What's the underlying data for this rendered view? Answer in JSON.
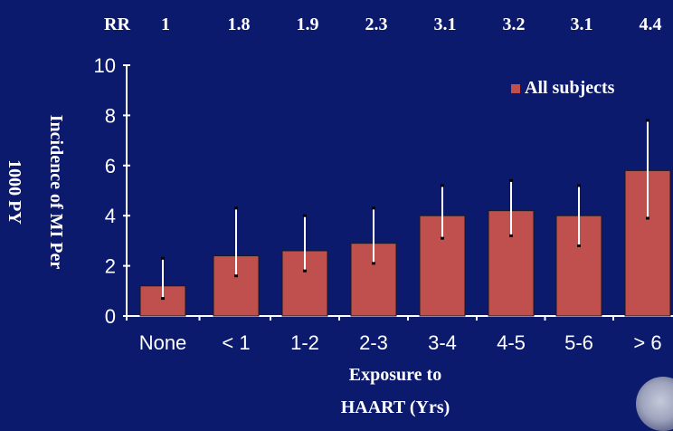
{
  "colors": {
    "background": "#0b1a6c",
    "bar": "#c0504d",
    "text": "#ffffff",
    "errorbar": "#ffffff"
  },
  "rr_row": {
    "label": "RR",
    "values": [
      "1",
      "1.8",
      "1.9",
      "2.3",
      "3.1",
      "3.2",
      "3.1",
      "4.4"
    ]
  },
  "logo": {
    "icon": "seal-logo-icon"
  },
  "chart_data": {
    "type": "bar",
    "categories": [
      "None",
      "< 1",
      "1-2",
      "2-3",
      "3-4",
      "4-5",
      "5-6",
      "> 6"
    ],
    "series": [
      {
        "name": "All subjects",
        "values": [
          1.2,
          2.4,
          2.6,
          2.9,
          4.0,
          4.2,
          4.0,
          5.8
        ],
        "error_low": [
          0.7,
          1.6,
          1.8,
          2.1,
          3.1,
          3.2,
          2.8,
          3.9
        ],
        "error_high": [
          2.3,
          4.3,
          4.0,
          4.3,
          5.2,
          5.4,
          5.2,
          7.8
        ]
      }
    ],
    "ylabel_line1": "Incidence of MI Per",
    "ylabel_line2": "1000 PY",
    "xlabel_line1": "Exposure to",
    "xlabel_line2": "HAART (Yrs)",
    "ylim": [
      0,
      10
    ],
    "yticks": [
      0,
      2,
      4,
      6,
      8,
      10
    ],
    "legend_position": "top-right",
    "grid": false
  }
}
